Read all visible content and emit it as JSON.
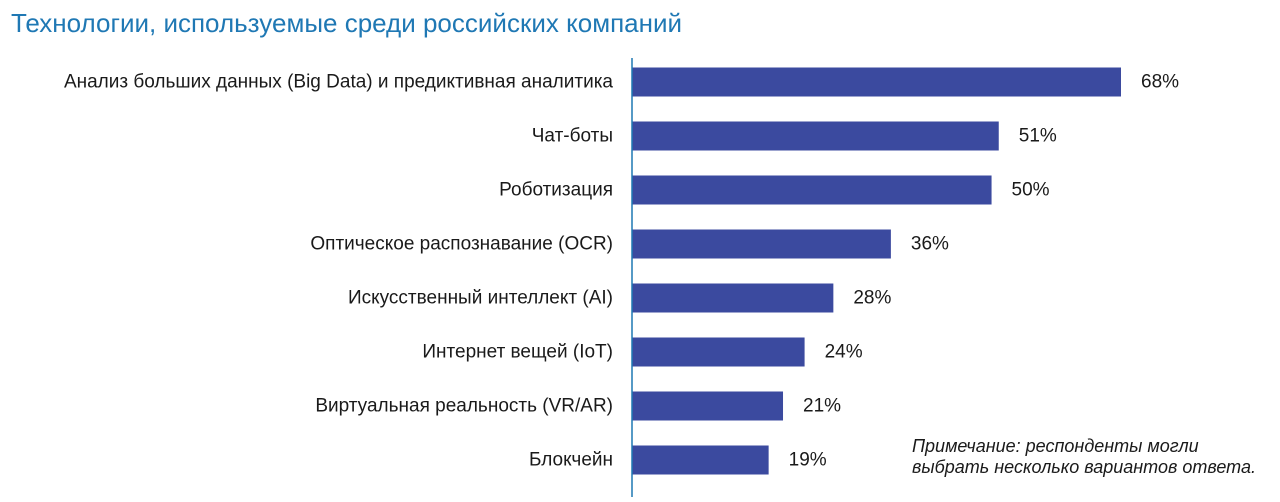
{
  "chart_data": {
    "type": "bar",
    "orientation": "horizontal",
    "title": "Технологии, используемые среди российских компаний",
    "categories": [
      "Анализ больших данных (Big Data) и предиктивная аналитика",
      "Чат-боты",
      "Роботизация",
      "Оптическое распознавание (OCR)",
      "Искусственный интеллект (AI)",
      "Интернет вещей (IoT)",
      "Виртуальная реальность (VR/AR)",
      "Блокчейн"
    ],
    "values": [
      68,
      51,
      50,
      36,
      28,
      24,
      21,
      19
    ],
    "value_labels": [
      "68%",
      "51%",
      "50%",
      "36%",
      "28%",
      "24%",
      "21%",
      "19%"
    ],
    "unit": "%",
    "xlim": [
      0,
      70
    ],
    "grid": false,
    "bar_color": "#3b4a9f",
    "axis_color": "#1f78b4",
    "title_color": "#1f78b4"
  },
  "note": {
    "lead": "Примечание:",
    "text": " респонденты могли выбрать несколько вариантов ответа."
  }
}
